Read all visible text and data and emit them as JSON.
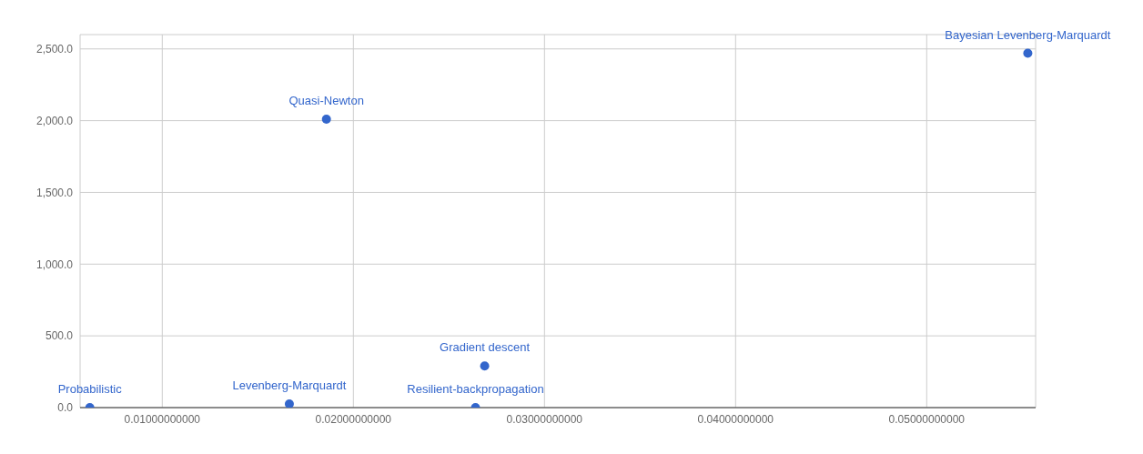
{
  "chart_data": {
    "type": "scatter",
    "x": [
      0.00621,
      0.01665,
      0.01859,
      0.02639,
      0.02687,
      0.05529
    ],
    "values": [
      0,
      25,
      2010,
      0,
      290,
      2470
    ],
    "color": "#3366cc",
    "marker": "circle",
    "grid": true,
    "legend": false,
    "xlim": [
      0.0057,
      0.0557
    ],
    "ylim": [
      0,
      2600
    ],
    "xticks": [
      {
        "value": 0.01,
        "label": "0.01000000000"
      },
      {
        "value": 0.02,
        "label": "0.02000000000"
      },
      {
        "value": 0.03,
        "label": "0.03000000000"
      },
      {
        "value": 0.04,
        "label": "0.04000000000"
      },
      {
        "value": 0.05,
        "label": "0.05000000000"
      }
    ],
    "yticks": [
      {
        "value": 0,
        "label": "0.0"
      },
      {
        "value": 500,
        "label": "500.0"
      },
      {
        "value": 1000,
        "label": "1,000.0"
      },
      {
        "value": 1500,
        "label": "1,500.0"
      },
      {
        "value": 2000,
        "label": "2,000.0"
      },
      {
        "value": 2500,
        "label": "2,500.0"
      }
    ],
    "annotations": [
      {
        "text": "Probabilistic",
        "x": 0.00621,
        "y": 0
      },
      {
        "text": "Levenberg-Marquardt",
        "x": 0.01665,
        "y": 25
      },
      {
        "text": "Quasi-Newton",
        "x": 0.01859,
        "y": 2010
      },
      {
        "text": "Resilient-backpropagation",
        "x": 0.02639,
        "y": 0
      },
      {
        "text": "Gradient descent",
        "x": 0.02687,
        "y": 290
      },
      {
        "text": "Bayesian Levenberg-Marquardt",
        "x": 0.05529,
        "y": 2470
      }
    ]
  }
}
